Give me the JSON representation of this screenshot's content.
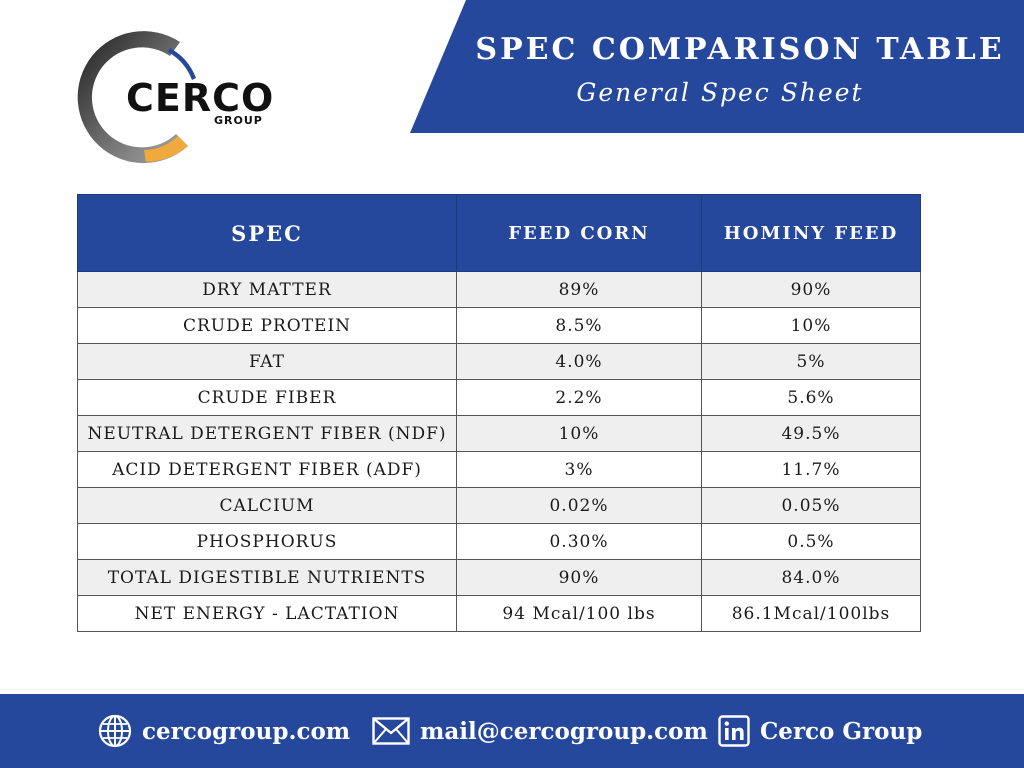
{
  "brand": {
    "name": "CERCO",
    "subtitle": "GROUP",
    "colors": {
      "ring_dark": "#3a3a3a",
      "ring_accent": "#f0a93c",
      "primary": "#26489c"
    }
  },
  "header": {
    "title": "SPEC COMPARISON TABLE",
    "subtitle": "General Spec Sheet"
  },
  "table": {
    "columns": [
      "SPEC",
      "FEED CORN",
      "HOMINY FEED"
    ],
    "rows": [
      [
        "DRY MATTER",
        "89%",
        "90%"
      ],
      [
        "CRUDE PROTEIN",
        "8.5%",
        "10%"
      ],
      [
        "FAT",
        "4.0%",
        "5%"
      ],
      [
        "CRUDE FIBER",
        "2.2%",
        "5.6%"
      ],
      [
        "NEUTRAL DETERGENT FIBER (NDF)",
        "10%",
        "49.5%"
      ],
      [
        "ACID DETERGENT FIBER (ADF)",
        "3%",
        "11.7%"
      ],
      [
        "CALCIUM",
        "0.02%",
        "0.05%"
      ],
      [
        "PHOSPHORUS",
        "0.30%",
        "0.5%"
      ],
      [
        "TOTAL DIGESTIBLE NUTRIENTS",
        "90%",
        "84.0%"
      ],
      [
        "NET ENERGY - LACTATION",
        "94 Mcal/100 lbs",
        "86.1Mcal/100lbs"
      ]
    ]
  },
  "footer": {
    "website": {
      "icon": "globe-icon",
      "label": "cercogroup.com"
    },
    "email": {
      "icon": "mail-icon",
      "label": "mail@cercogroup.com"
    },
    "linkedin": {
      "icon": "linkedin-icon",
      "label": "Cerco Group"
    }
  }
}
